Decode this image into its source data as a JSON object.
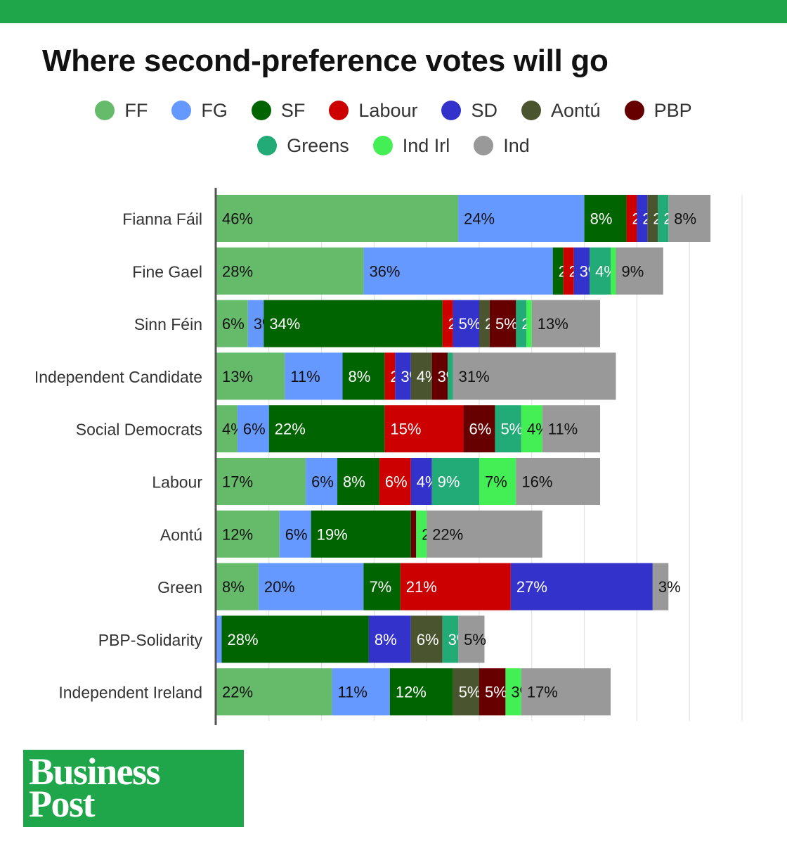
{
  "header": {
    "title": "Where second-preference votes will go"
  },
  "logo": {
    "line1": "Business",
    "line2": "Post"
  },
  "chart_data": {
    "type": "bar",
    "orientation": "horizontal",
    "stacked": true,
    "title": "Where second-preference votes will go",
    "xlabel": "",
    "ylabel": "",
    "xlim": [
      0,
      100
    ],
    "grid": true,
    "legend_position": "top",
    "categories": [
      "Fianna Fáil",
      "Fine Gael",
      "Sinn Féin",
      "Independent Candidate",
      "Social Democrats",
      "Labour",
      "Aontú",
      "Green",
      "PBP-Solidarity",
      "Independent Ireland"
    ],
    "series": [
      {
        "name": "FF",
        "color": "#66bb6a",
        "label_color": "#111111",
        "values": [
          46,
          28,
          6,
          13,
          4,
          17,
          12,
          8,
          0,
          22
        ]
      },
      {
        "name": "FG",
        "color": "#6699ff",
        "label_color": "#111111",
        "values": [
          24,
          36,
          3,
          11,
          6,
          6,
          6,
          20,
          1,
          11
        ]
      },
      {
        "name": "SF",
        "color": "#006400",
        "label_color": "#ffffff",
        "values": [
          8,
          2,
          34,
          8,
          22,
          8,
          19,
          7,
          28,
          12
        ]
      },
      {
        "name": "Labour",
        "color": "#cc0000",
        "label_color": "#ffffff",
        "values": [
          2,
          2,
          2,
          2,
          15,
          6,
          0,
          21,
          0,
          0
        ]
      },
      {
        "name": "SD",
        "color": "#3333cc",
        "label_color": "#ffffff",
        "values": [
          2,
          3,
          5,
          3,
          0,
          4,
          0,
          27,
          8,
          0
        ]
      },
      {
        "name": "Aontú",
        "color": "#4a5530",
        "label_color": "#ffffff",
        "values": [
          2,
          0,
          2,
          4,
          0,
          0,
          0,
          0,
          6,
          5
        ]
      },
      {
        "name": "PBP",
        "color": "#660000",
        "label_color": "#ffffff",
        "values": [
          0,
          0,
          5,
          3,
          6,
          0,
          1,
          0,
          0,
          5
        ]
      },
      {
        "name": "Greens",
        "color": "#22aa77",
        "label_color": "#ffffff",
        "values": [
          2,
          4,
          2,
          1,
          5,
          9,
          0,
          0,
          3,
          0
        ]
      },
      {
        "name": "Ind Irl",
        "color": "#44ee55",
        "label_color": "#111111",
        "values": [
          0,
          1,
          1,
          0,
          4,
          7,
          2,
          0,
          0,
          3
        ]
      },
      {
        "name": "Ind",
        "color": "#999999",
        "label_color": "#111111",
        "values": [
          8,
          9,
          13,
          31,
          11,
          16,
          22,
          3,
          5,
          17
        ]
      }
    ]
  }
}
